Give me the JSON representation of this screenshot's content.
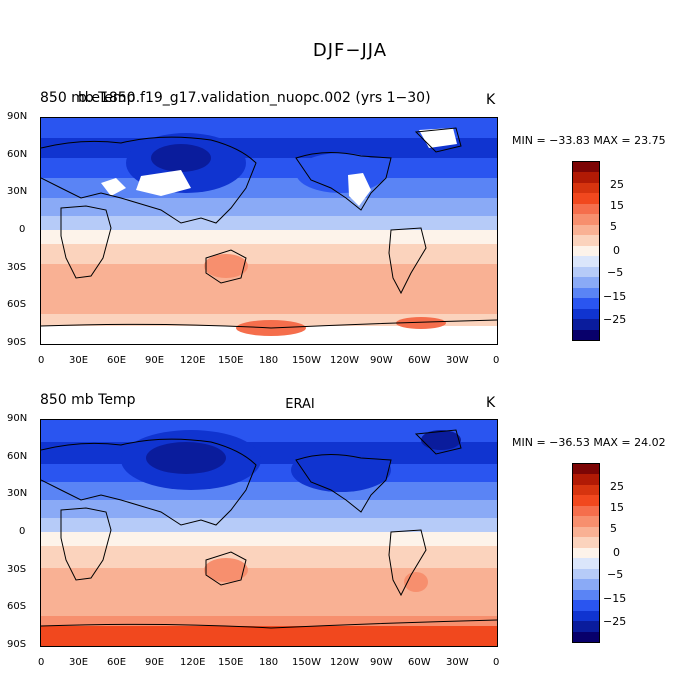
{
  "title": "DJF−JJA",
  "colors": {
    "palette": [
      "#08006b",
      "#0a1c9c",
      "#1034d0",
      "#2a55f0",
      "#5a84f5",
      "#8aaaf6",
      "#b6cbf8",
      "#dbe6fb",
      "#fdf3ea",
      "#fbd3bd",
      "#f9b194",
      "#f78f6e",
      "#f56e4c",
      "#f1481e",
      "#d6340f",
      "#b11a05",
      "#7c0505"
    ],
    "land_missing": "#ffffff",
    "coast": "#000000"
  },
  "panels": [
    {
      "left_title": "850 mb Temp",
      "overlay_title": "b.e1850.f19_g17.validation_nuopc.002 (yrs 1−30)",
      "center_title": "",
      "units": "K",
      "stats": "MIN = −33.83  MAX =  23.75"
    },
    {
      "left_title": "850 mb Temp",
      "center_title": "ERAI",
      "units": "K",
      "stats": "MIN = −36.53  MAX =  24.02"
    }
  ],
  "lat_labels": [
    "90N",
    "60N",
    "30N",
    "0",
    "30S",
    "60S",
    "90S"
  ],
  "lon_labels": [
    "0",
    "30E",
    "60E",
    "90E",
    "120E",
    "150E",
    "180",
    "150W",
    "120W",
    "90W",
    "60W",
    "30W",
    "0"
  ],
  "colorbar_labels": [
    "25",
    "15",
    "5",
    "0",
    "−5",
    "−15",
    "−25"
  ]
}
